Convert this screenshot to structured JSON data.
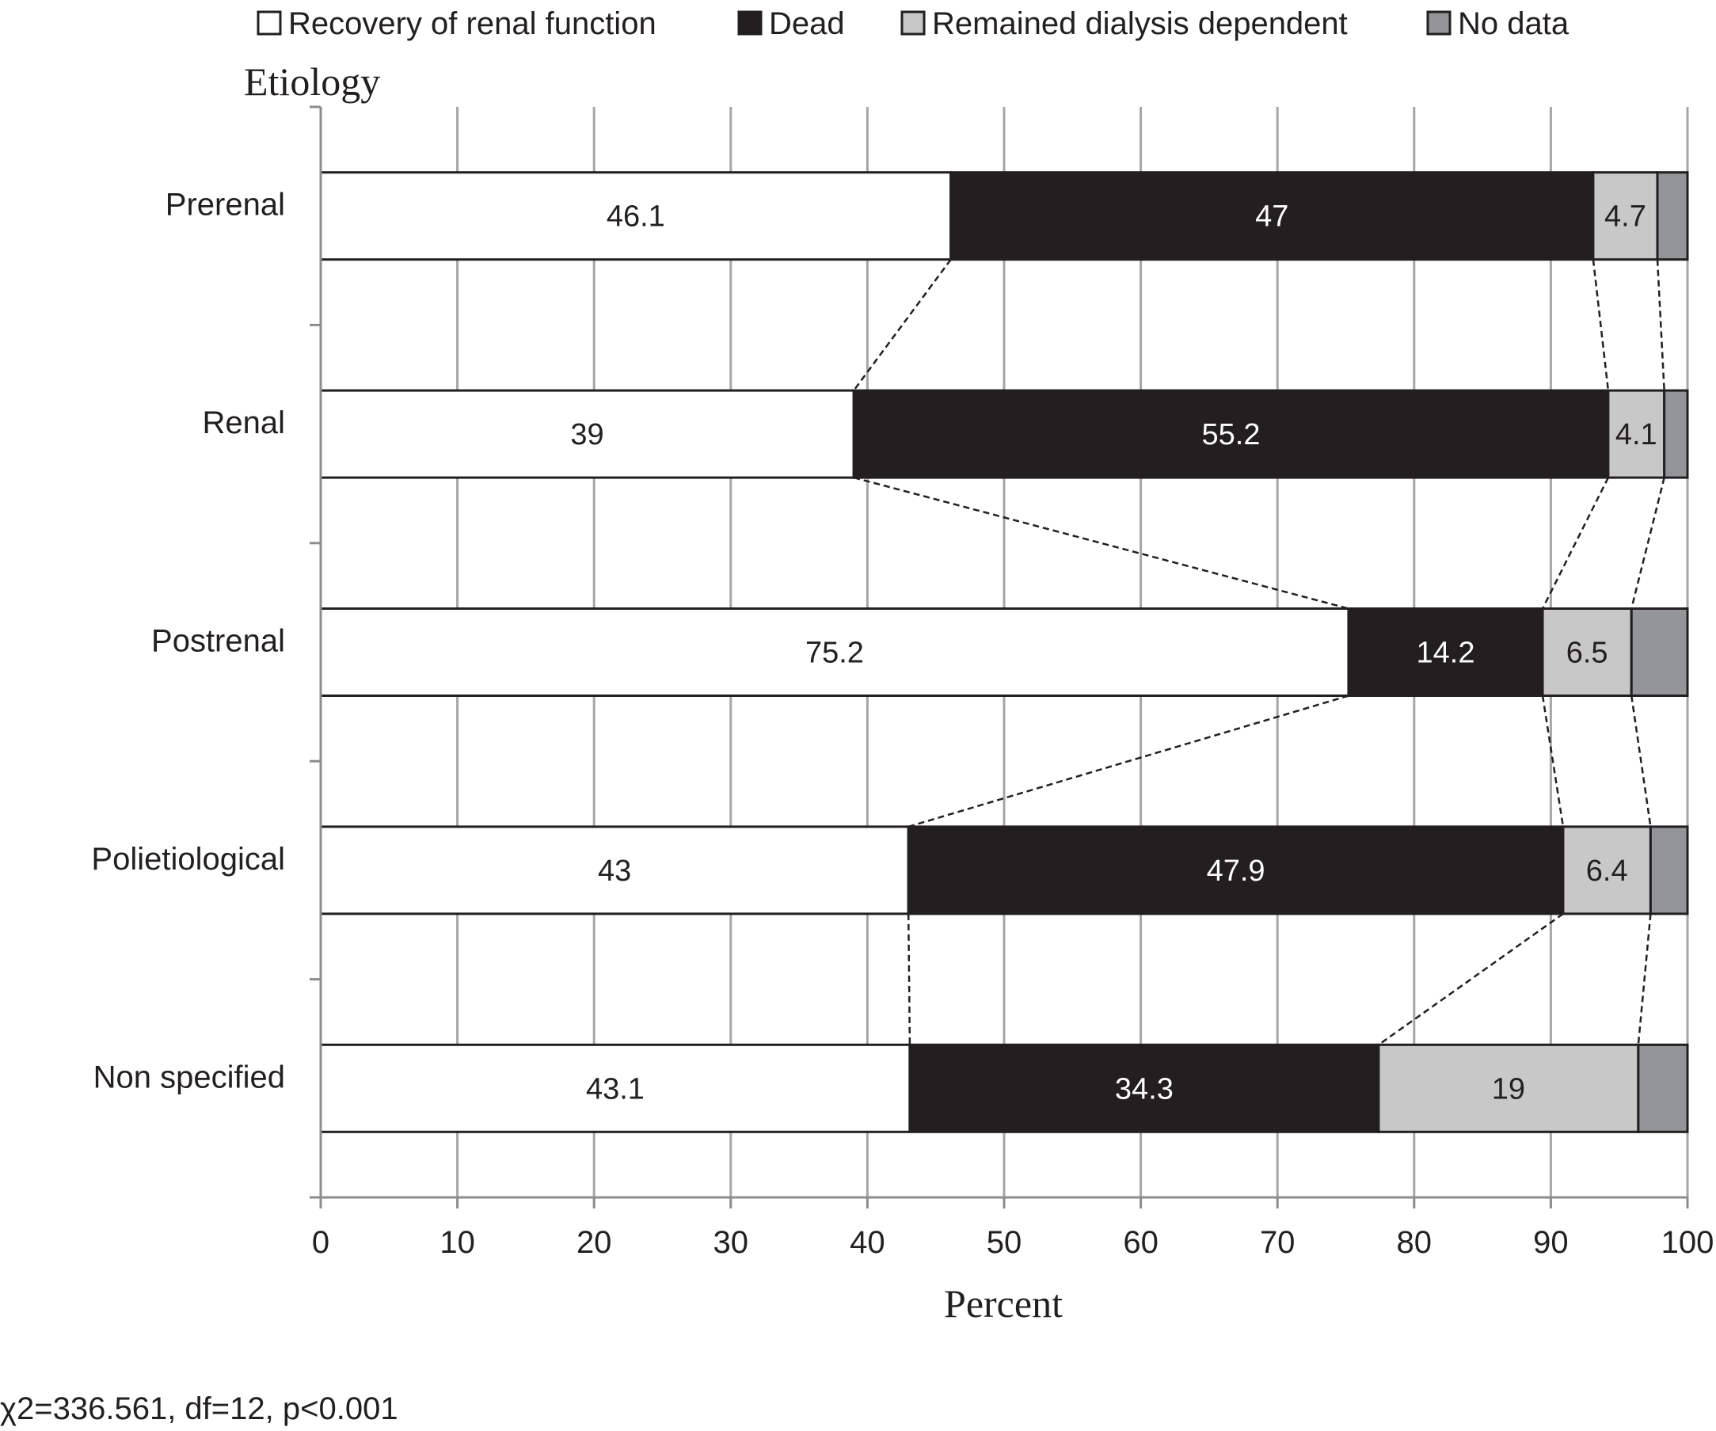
{
  "chart_data": {
    "type": "bar",
    "orientation": "horizontal",
    "stacked": true,
    "xlabel": "Percent",
    "ylabel": "Etiology",
    "xlim": [
      0,
      100
    ],
    "xticks": [
      "0",
      "10",
      "20",
      "30",
      "40",
      "50",
      "60",
      "70",
      "80",
      "90",
      "100"
    ],
    "grid": true,
    "legend_position": "top",
    "categories": [
      "Prerenal",
      "Renal",
      "Postrenal",
      "Polietiological",
      "Non specified"
    ],
    "series": [
      {
        "name": "Recovery of renal function",
        "color": "#ffffff",
        "label_color": "#231f20",
        "values": [
          46.1,
          39,
          75.2,
          43,
          43.1
        ],
        "labels": [
          "46.1",
          "39",
          "75.2",
          "43",
          "43.1"
        ]
      },
      {
        "name": "Dead",
        "color": "#231f20",
        "label_color": "#ffffff",
        "values": [
          47,
          55.2,
          14.2,
          47.9,
          34.3
        ],
        "labels": [
          "47",
          "55.2",
          "14.2",
          "47.9",
          "34.3"
        ]
      },
      {
        "name": "Remained dialysis dependent",
        "color": "#c8c8c8",
        "label_color": "#231f20",
        "values": [
          4.7,
          4.1,
          6.5,
          6.4,
          19
        ],
        "labels": [
          "4.7",
          "4.1",
          "6.5",
          "6.4",
          "19"
        ]
      },
      {
        "name": "No data",
        "color": "#939598",
        "label_color": "#231f20",
        "values": [
          2.2,
          1.7,
          4.1,
          2.7,
          3.6
        ],
        "labels": [
          "",
          "",
          "",
          "",
          ""
        ]
      }
    ],
    "annotation": "χ2=336.561, df=12, p<0.001"
  }
}
